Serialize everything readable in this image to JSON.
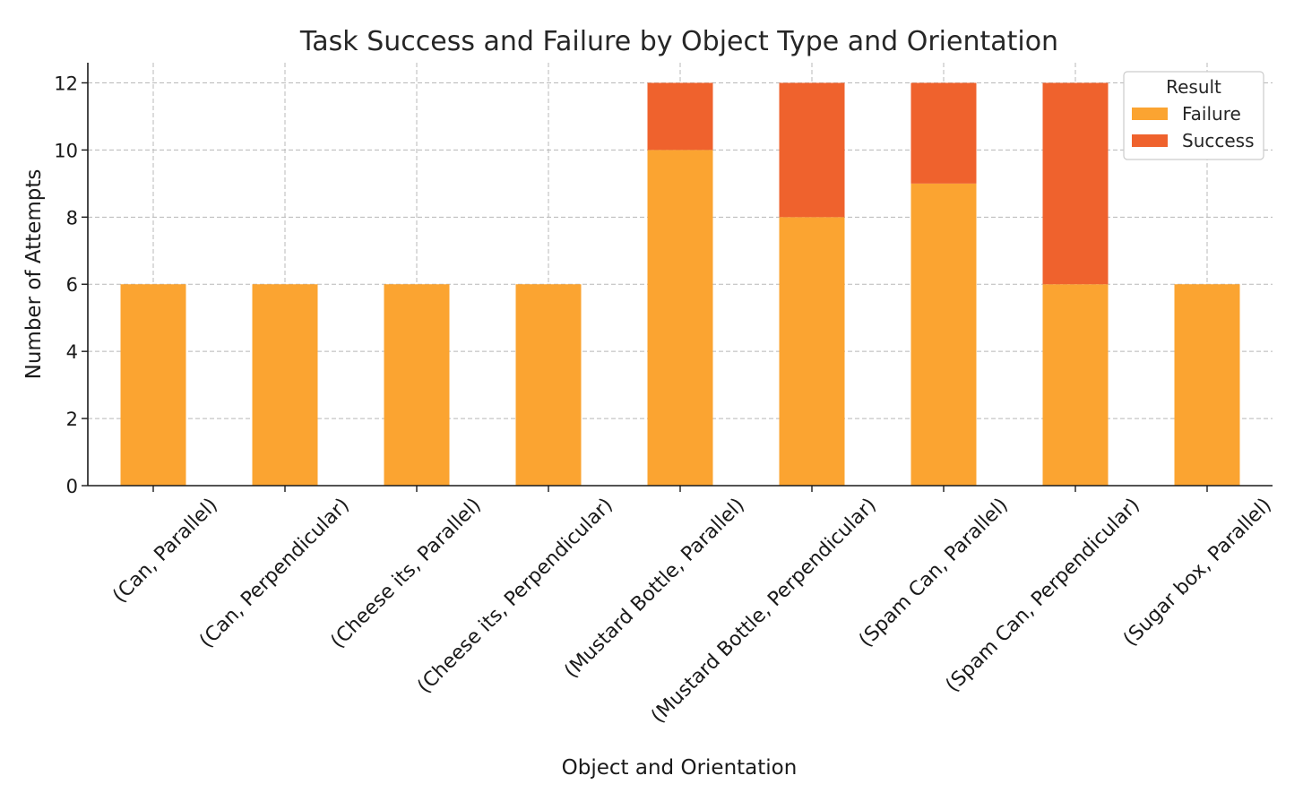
{
  "chart_data": {
    "type": "bar",
    "stacked": true,
    "title": "Task Success and Failure by Object Type and Orientation",
    "xlabel": "Object and Orientation",
    "ylabel": "Number of Attempts",
    "ylim": [
      0,
      12.6
    ],
    "yticks": [
      0,
      2,
      4,
      6,
      8,
      10,
      12
    ],
    "grid": true,
    "legend": {
      "title": "Result",
      "placement": "top-right"
    },
    "categories": [
      "(Can, Parallel)",
      "(Can, Perpendicular)",
      "(Cheese its, Parallel)",
      "(Cheese its, Perpendicular)",
      "(Mustard Bottle, Parallel)",
      "(Mustard Bottle, Perpendicular)",
      "(Spam Can, Parallel)",
      "(Spam Can, Perpendicular)",
      "(Sugar box, Parallel)"
    ],
    "series": [
      {
        "name": "Failure",
        "color": "#FBA431",
        "values": [
          6,
          6,
          6,
          6,
          10,
          8,
          9,
          6,
          6
        ]
      },
      {
        "name": "Success",
        "color": "#EF622D",
        "values": [
          0,
          0,
          0,
          0,
          2,
          4,
          3,
          6,
          0
        ]
      }
    ]
  }
}
